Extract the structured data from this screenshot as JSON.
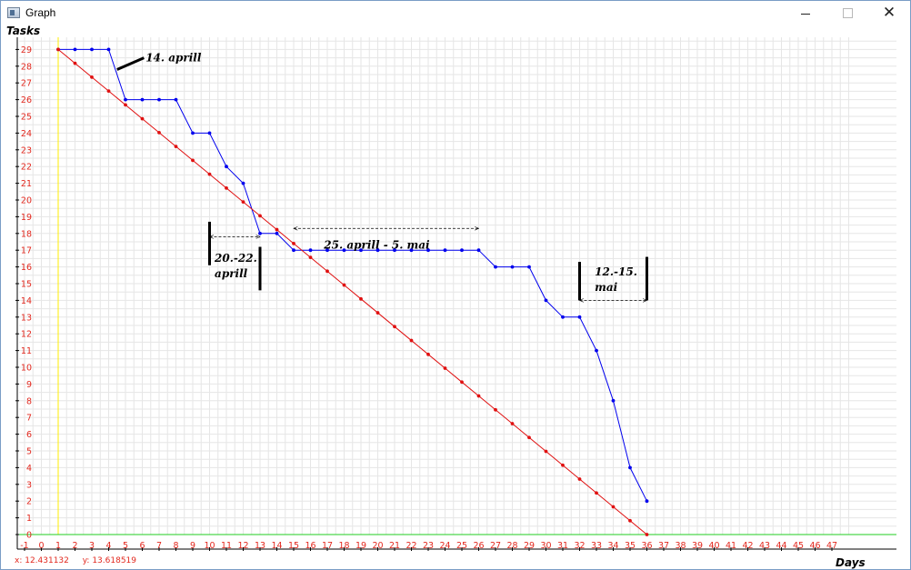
{
  "window": {
    "title": "Graph",
    "icons": {
      "app": "graph-app-icon",
      "minimize": "minimize-icon",
      "maximize": "maximize-icon",
      "close": "close-icon"
    }
  },
  "status": {
    "x_readout": "x: 12.431132",
    "y_readout": "y: 13.618519"
  },
  "chart_data": {
    "type": "line",
    "title": "",
    "xlabel": "Days",
    "ylabel": "Tasks",
    "xlim": [
      -1,
      47
    ],
    "ylim": [
      0,
      29
    ],
    "x_ticks": [
      -1,
      0,
      1,
      2,
      3,
      4,
      5,
      6,
      7,
      8,
      9,
      10,
      11,
      12,
      13,
      14,
      15,
      16,
      17,
      18,
      19,
      20,
      21,
      22,
      23,
      24,
      25,
      26,
      27,
      28,
      29,
      30,
      31,
      32,
      33,
      34,
      35,
      36,
      37,
      38,
      39,
      40,
      41,
      42,
      43,
      44,
      45,
      46,
      47
    ],
    "y_ticks": [
      0,
      1,
      2,
      3,
      4,
      5,
      6,
      7,
      8,
      9,
      10,
      11,
      12,
      13,
      14,
      15,
      16,
      17,
      18,
      19,
      20,
      21,
      22,
      23,
      24,
      25,
      26,
      27,
      28,
      29
    ],
    "grid": true,
    "colors": {
      "tick_labels": "#e2281e",
      "grid": "#e6e6e6",
      "actual": "#0000ee",
      "ideal": "#e01010",
      "x_axis": "#22cc22",
      "y_axis": "#ffee00",
      "annotation": "#000000"
    },
    "series": [
      {
        "key": "actual",
        "x": [
          1,
          2,
          3,
          4,
          5,
          6,
          7,
          8,
          9,
          10,
          11,
          12,
          13,
          14,
          15,
          16,
          17,
          18,
          19,
          20,
          21,
          22,
          23,
          24,
          25,
          26,
          27,
          28,
          29,
          30,
          31,
          32,
          33,
          34,
          35,
          36
        ],
        "values": [
          29,
          29,
          29,
          29,
          26,
          26,
          26,
          26,
          24,
          24,
          22,
          21,
          18,
          18,
          17,
          17,
          17,
          17,
          17,
          17,
          17,
          17,
          17,
          17,
          17,
          17,
          16,
          16,
          16,
          14,
          13,
          13,
          11,
          8,
          4,
          2
        ]
      },
      {
        "key": "ideal",
        "x": [
          1,
          2,
          3,
          4,
          5,
          6,
          7,
          8,
          9,
          10,
          11,
          12,
          13,
          14,
          15,
          16,
          17,
          18,
          19,
          20,
          21,
          22,
          23,
          24,
          25,
          26,
          27,
          28,
          29,
          30,
          31,
          32,
          33,
          34,
          35,
          36
        ],
        "values": [
          29,
          28.171,
          27.343,
          26.514,
          25.686,
          24.857,
          24.029,
          23.2,
          22.371,
          21.543,
          20.714,
          19.886,
          19.057,
          18.229,
          17.4,
          16.571,
          15.743,
          14.914,
          14.086,
          13.257,
          12.429,
          11.6,
          10.771,
          9.943,
          9.114,
          8.286,
          7.457,
          6.629,
          5.8,
          4.971,
          4.143,
          3.314,
          2.486,
          1.657,
          0.829,
          0
        ]
      }
    ],
    "annotations": {
      "a1": {
        "lines": [
          "14. aprill"
        ],
        "pointer": [
          4.5,
          27.8,
          6.1,
          28.5
        ],
        "label_at": [
          6.2,
          28.3
        ]
      },
      "a2": {
        "lines": [
          "20.-22.",
          "aprill"
        ],
        "bars": [
          [
            10,
            16.1,
            10,
            18.7
          ],
          [
            13,
            14.6,
            13,
            17.2
          ]
        ],
        "arrow": [
          10,
          17.8,
          13,
          17.8
        ],
        "label_at": [
          10.3,
          16.3
        ]
      },
      "a3": {
        "lines": [
          "25. aprill - 5. mai"
        ],
        "arrow": [
          15,
          18.3,
          26,
          18.3
        ],
        "label_at": [
          16.8,
          17.1
        ]
      },
      "a4": {
        "lines": [
          "12.-15.",
          "mai"
        ],
        "bars": [
          [
            32,
            14,
            32,
            16.3
          ],
          [
            36,
            14,
            36,
            16.6
          ]
        ],
        "arrow": [
          32,
          14,
          36,
          14
        ],
        "label_at": [
          32.9,
          15.5
        ]
      }
    }
  }
}
